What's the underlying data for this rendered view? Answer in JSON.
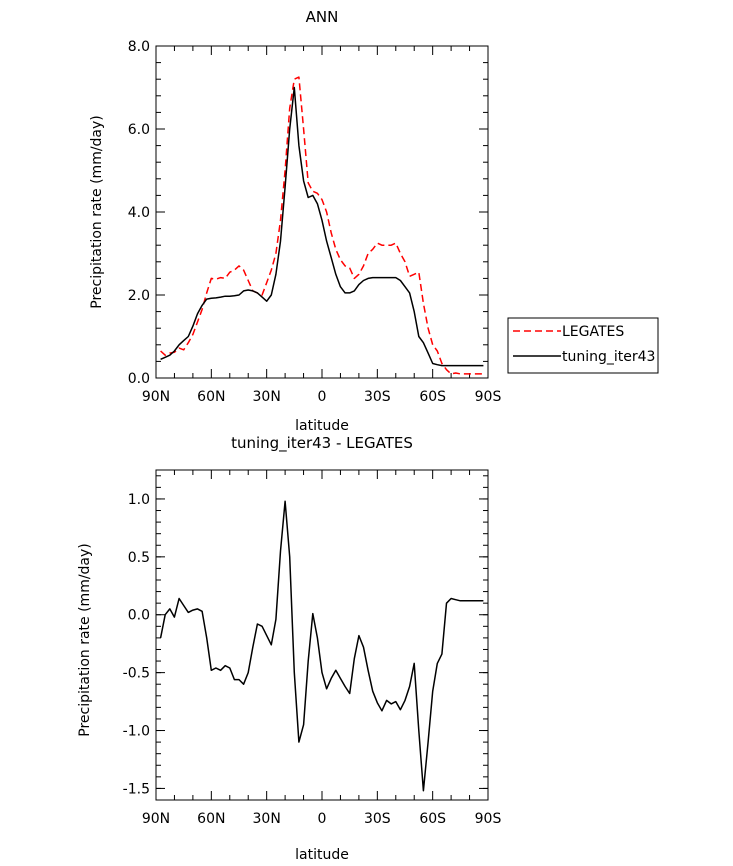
{
  "chart_data": [
    {
      "type": "line",
      "title": "ANN",
      "xlabel": "latitude",
      "ylabel": "Precipitation rate (mm/day)",
      "xlim": [
        90,
        -90
      ],
      "ylim": [
        0,
        8
      ],
      "x_ticks": [
        90,
        60,
        30,
        0,
        -30,
        -60,
        -90
      ],
      "x_tick_labels": [
        "90N",
        "60N",
        "30N",
        "0",
        "30S",
        "60S",
        "90S"
      ],
      "y_ticks": [
        0,
        2,
        4,
        6,
        8
      ],
      "y_tick_labels": [
        "0.0",
        "2.0",
        "4.0",
        "6.0",
        "8.0"
      ],
      "legend_position": "right",
      "series": [
        {
          "name": "LEGATES",
          "color": "#ff0000",
          "style": "dashed",
          "x": [
            87.5,
            85,
            82.5,
            80,
            77.5,
            75,
            72.5,
            70,
            67.5,
            65,
            62.5,
            60,
            57.5,
            55,
            52.5,
            50,
            47.5,
            45,
            42.5,
            40,
            37.5,
            35,
            32.5,
            30,
            27.5,
            25,
            22.5,
            20,
            17.5,
            15,
            12.5,
            10,
            7.5,
            5,
            2.5,
            0,
            -2.5,
            -5,
            -7.5,
            -10,
            -12.5,
            -15,
            -17.5,
            -20,
            -22.5,
            -25,
            -27.5,
            -30,
            -32.5,
            -35,
            -37.5,
            -40,
            -42.5,
            -45,
            -47.5,
            -50,
            -52.5,
            -55,
            -57.5,
            -60,
            -62.5,
            -65,
            -67.5,
            -70,
            -72.5,
            -75,
            -77.5,
            -80,
            -82.5,
            -85,
            -87.5
          ],
          "y": [
            0.65,
            0.55,
            0.6,
            0.62,
            0.72,
            0.68,
            0.85,
            1.05,
            1.35,
            1.65,
            2.05,
            2.4,
            2.38,
            2.42,
            2.4,
            2.55,
            2.6,
            2.7,
            2.6,
            2.35,
            2.1,
            2.05,
            2.0,
            2.3,
            2.6,
            3.0,
            3.8,
            5.0,
            6.5,
            7.2,
            7.25,
            6.0,
            4.7,
            4.5,
            4.45,
            4.3,
            4.0,
            3.5,
            3.1,
            2.85,
            2.7,
            2.65,
            2.4,
            2.5,
            2.7,
            3.0,
            3.1,
            3.25,
            3.2,
            3.2,
            3.2,
            3.25,
            3.0,
            2.8,
            2.45,
            2.5,
            2.55,
            1.8,
            1.2,
            0.8,
            0.65,
            0.35,
            0.2,
            0.1,
            0.12,
            0.1,
            0.1,
            0.1,
            0.1,
            0.1,
            0.1
          ]
        },
        {
          "name": "tuning_iter43",
          "color": "#000000",
          "style": "solid",
          "x": [
            87.5,
            85,
            82.5,
            80,
            77.5,
            75,
            72.5,
            70,
            67.5,
            65,
            62.5,
            60,
            57.5,
            55,
            52.5,
            50,
            47.5,
            45,
            42.5,
            40,
            37.5,
            35,
            32.5,
            30,
            27.5,
            25,
            22.5,
            20,
            17.5,
            15,
            12.5,
            10,
            7.5,
            5,
            2.5,
            0,
            -2.5,
            -5,
            -7.5,
            -10,
            -12.5,
            -15,
            -17.5,
            -20,
            -22.5,
            -25,
            -27.5,
            -30,
            -32.5,
            -35,
            -37.5,
            -40,
            -42.5,
            -45,
            -47.5,
            -50,
            -52.5,
            -55,
            -57.5,
            -60,
            -62.5,
            -65,
            -67.5,
            -70,
            -72.5,
            -75,
            -77.5,
            -80,
            -82.5,
            -85,
            -87.5
          ],
          "y": [
            0.45,
            0.5,
            0.55,
            0.65,
            0.8,
            0.9,
            1.0,
            1.25,
            1.55,
            1.75,
            1.9,
            1.92,
            1.93,
            1.95,
            1.97,
            1.97,
            1.98,
            2.0,
            2.1,
            2.12,
            2.1,
            2.05,
            1.95,
            1.85,
            2.0,
            2.5,
            3.3,
            4.6,
            6.0,
            7.0,
            5.6,
            4.75,
            4.35,
            4.4,
            4.2,
            3.8,
            3.3,
            2.9,
            2.5,
            2.2,
            2.05,
            2.05,
            2.1,
            2.25,
            2.35,
            2.4,
            2.42,
            2.42,
            2.42,
            2.42,
            2.42,
            2.42,
            2.35,
            2.2,
            2.05,
            1.6,
            1.0,
            0.85,
            0.6,
            0.35,
            0.32,
            0.3,
            0.3,
            0.3,
            0.3,
            0.3,
            0.3,
            0.3,
            0.3,
            0.3,
            0.3
          ]
        }
      ]
    },
    {
      "type": "line",
      "title": "tuning_iter43 - LEGATES",
      "xlabel": "latitude",
      "ylabel": "Precipitation rate (mm/day)",
      "xlim": [
        90,
        -90
      ],
      "ylim": [
        -1.6,
        1.25
      ],
      "x_ticks": [
        90,
        60,
        30,
        0,
        -30,
        -60,
        -90
      ],
      "x_tick_labels": [
        "90N",
        "60N",
        "30N",
        "0",
        "30S",
        "60S",
        "90S"
      ],
      "y_ticks": [
        -1.5,
        -1.0,
        -0.5,
        0.0,
        0.5,
        1.0
      ],
      "y_tick_labels": [
        "-1.5",
        "-1.0",
        "-0.5",
        "0.0",
        "0.5",
        "1.0"
      ],
      "series": [
        {
          "color": "#000000",
          "style": "solid",
          "x": [
            87.5,
            85,
            82.5,
            80,
            77.5,
            75,
            72.5,
            70,
            67.5,
            65,
            62.5,
            60,
            57.5,
            55,
            52.5,
            50,
            47.5,
            45,
            42.5,
            40,
            37.5,
            35,
            32.5,
            30,
            27.5,
            25,
            22.5,
            20,
            17.5,
            15,
            12.5,
            10,
            7.5,
            5,
            2.5,
            0,
            -2.5,
            -5,
            -7.5,
            -10,
            -12.5,
            -15,
            -17.5,
            -20,
            -22.5,
            -25,
            -27.5,
            -30,
            -32.5,
            -35,
            -37.5,
            -40,
            -42.5,
            -45,
            -47.5,
            -50,
            -52.5,
            -55,
            -57.5,
            -60,
            -62.5,
            -65,
            -67.5,
            -70,
            -72.5,
            -75,
            -77.5,
            -80,
            -82.5,
            -85,
            -87.5
          ],
          "y": [
            -0.2,
            0.0,
            0.05,
            -0.02,
            0.14,
            0.08,
            0.02,
            0.04,
            0.05,
            0.03,
            -0.2,
            -0.48,
            -0.46,
            -0.48,
            -0.44,
            -0.46,
            -0.56,
            -0.56,
            -0.6,
            -0.5,
            -0.28,
            -0.08,
            -0.1,
            -0.18,
            -0.26,
            -0.04,
            0.55,
            0.98,
            0.5,
            -0.5,
            -1.1,
            -0.95,
            -0.4,
            0.01,
            -0.2,
            -0.5,
            -0.64,
            -0.55,
            -0.48,
            -0.55,
            -0.62,
            -0.68,
            -0.38,
            -0.18,
            -0.28,
            -0.48,
            -0.66,
            -0.76,
            -0.83,
            -0.74,
            -0.77,
            -0.75,
            -0.82,
            -0.74,
            -0.62,
            -0.42,
            -1.0,
            -1.52,
            -1.1,
            -0.66,
            -0.42,
            -0.34,
            0.1,
            0.14,
            0.13,
            0.12,
            0.12,
            0.12,
            0.12,
            0.12,
            0.12
          ]
        }
      ]
    }
  ]
}
